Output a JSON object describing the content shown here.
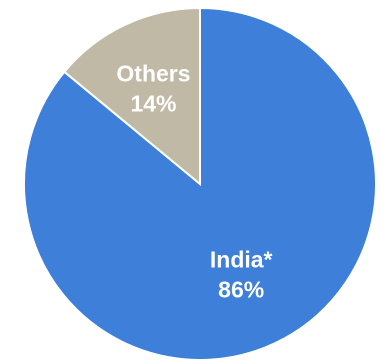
{
  "chart_data": {
    "type": "pie",
    "slices": [
      {
        "label": "India*",
        "value": 86,
        "value_label": "86%",
        "color": "#3d7fd9",
        "label_color": "#ffffff"
      },
      {
        "label": "Others",
        "value": 14,
        "value_label": "14%",
        "color": "#c0b9a6",
        "label_color": "#000000"
      }
    ],
    "start_angle_deg": 0,
    "direction": "clockwise",
    "legend": "none",
    "title": ""
  }
}
